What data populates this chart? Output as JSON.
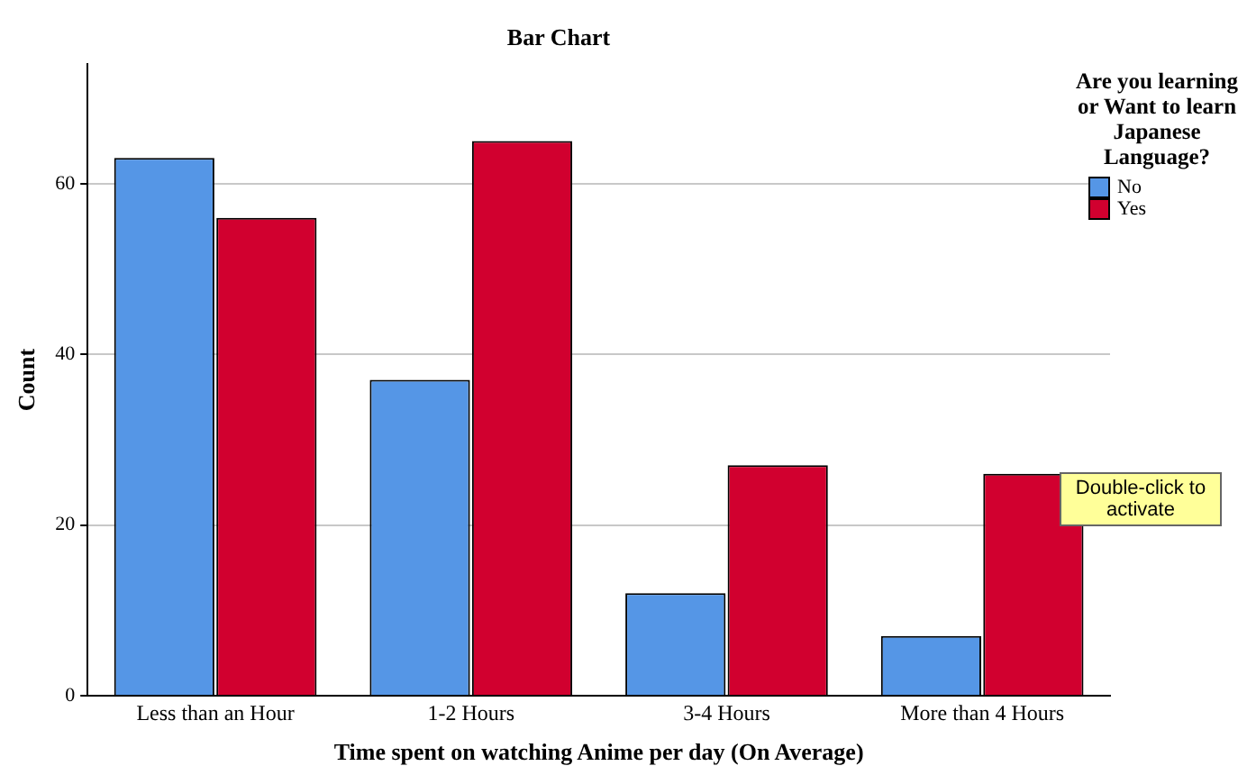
{
  "chart_data": {
    "type": "bar",
    "title": "Bar Chart",
    "xlabel": "Time spent on watching Anime per day (On Average)",
    "ylabel": "Count",
    "legend_title": "Are you learning or Want to learn Japanese Language?",
    "categories": [
      "Less than an Hour",
      "1-2 Hours",
      "3-4 Hours",
      "More than 4 Hours"
    ],
    "series": [
      {
        "name": "No",
        "color": "#5596e6",
        "values": [
          63,
          37,
          12,
          7
        ]
      },
      {
        "name": "Yes",
        "color": "#d1002f",
        "values": [
          56,
          65,
          27,
          26
        ]
      }
    ],
    "ylim": [
      0,
      74
    ],
    "yticks": [
      0,
      20,
      40,
      60
    ],
    "grid": "y",
    "legend": "top right",
    "annotations": [
      "Double-click to activate"
    ]
  }
}
